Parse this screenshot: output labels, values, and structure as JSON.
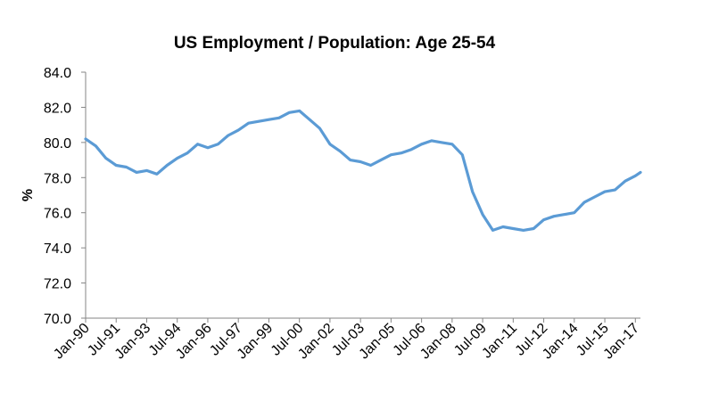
{
  "chart_data": {
    "type": "line",
    "title": "US Employment / Population: Age 25-54",
    "xlabel": "",
    "ylabel": "%",
    "ylim": [
      70,
      84
    ],
    "yticks": [
      70,
      72,
      74,
      76,
      78,
      80,
      82,
      84
    ],
    "ytick_labels": [
      "70.0",
      "72.0",
      "74.0",
      "76.0",
      "78.0",
      "80.0",
      "82.0",
      "84.0"
    ],
    "xtick_labels": [
      "Jan-90",
      "Jul-91",
      "Jan-93",
      "Jul-94",
      "Jan-96",
      "Jul-97",
      "Jan-99",
      "Jul-00",
      "Jan-02",
      "Jul-03",
      "Jan-05",
      "Jul-06",
      "Jan-08",
      "Jul-09",
      "Jan-11",
      "Jul-12",
      "Jan-14",
      "Jul-15",
      "Jan-17"
    ],
    "x_range": [
      "1990-01",
      "2017-04"
    ],
    "grid": false,
    "legend": "none",
    "line_color": "#5B9BD5",
    "series": [
      {
        "x": [
          "1990-01",
          "1990-07",
          "1991-01",
          "1991-07",
          "1992-01",
          "1992-07",
          "1993-01",
          "1993-07",
          "1994-01",
          "1994-07",
          "1995-01",
          "1995-07",
          "1996-01",
          "1996-07",
          "1997-01",
          "1997-07",
          "1998-01",
          "1998-07",
          "1999-01",
          "1999-07",
          "2000-01",
          "2000-07",
          "2001-01",
          "2001-07",
          "2002-01",
          "2002-07",
          "2003-01",
          "2003-07",
          "2004-01",
          "2004-07",
          "2005-01",
          "2005-07",
          "2006-01",
          "2006-07",
          "2007-01",
          "2007-07",
          "2008-01",
          "2008-07",
          "2009-01",
          "2009-07",
          "2010-01",
          "2010-07",
          "2011-01",
          "2011-07",
          "2012-01",
          "2012-07",
          "2013-01",
          "2013-07",
          "2014-01",
          "2014-07",
          "2015-01",
          "2015-07",
          "2016-01",
          "2016-07",
          "2017-01",
          "2017-04"
        ],
        "values": [
          80.2,
          79.8,
          79.1,
          78.7,
          78.6,
          78.3,
          78.4,
          78.2,
          78.7,
          79.1,
          79.4,
          79.9,
          79.7,
          79.9,
          80.4,
          80.7,
          81.1,
          81.2,
          81.3,
          81.4,
          81.7,
          81.8,
          81.3,
          80.8,
          79.9,
          79.5,
          79.0,
          78.9,
          78.7,
          79.0,
          79.3,
          79.4,
          79.6,
          79.9,
          80.1,
          80.0,
          79.9,
          79.3,
          77.2,
          75.9,
          75.0,
          75.2,
          75.1,
          75.0,
          75.1,
          75.6,
          75.8,
          75.9,
          76.0,
          76.6,
          76.9,
          77.2,
          77.3,
          77.8,
          78.1,
          78.3
        ]
      }
    ]
  }
}
